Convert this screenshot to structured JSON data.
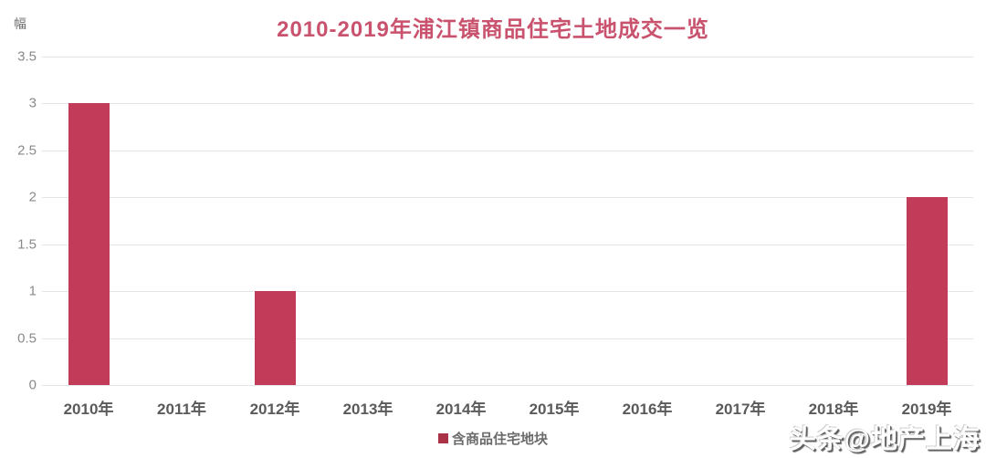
{
  "chart_data": {
    "type": "bar",
    "title": "2010-2019年浦江镇商品住宅土地成交一览",
    "ylabel_unit": "幅",
    "categories": [
      "2010年",
      "2011年",
      "2012年",
      "2013年",
      "2014年",
      "2015年",
      "2016年",
      "2017年",
      "2018年",
      "2019年"
    ],
    "series": [
      {
        "name": "含商品住宅地块",
        "values": [
          3,
          0,
          1,
          0,
          0,
          0,
          0,
          0,
          0,
          2
        ]
      }
    ],
    "ylim": [
      0,
      3.5
    ],
    "yticks": [
      "3.5",
      "3",
      "2.5",
      "2",
      "1.5",
      "1",
      "0.5",
      "0"
    ],
    "grid": "horizontal",
    "legend_position": "bottom-center",
    "bar_color": "#c23b58",
    "legend_swatch_color": "#a93148",
    "title_color": "#c9536e"
  },
  "watermark": {
    "text": "头条@地产上海"
  }
}
